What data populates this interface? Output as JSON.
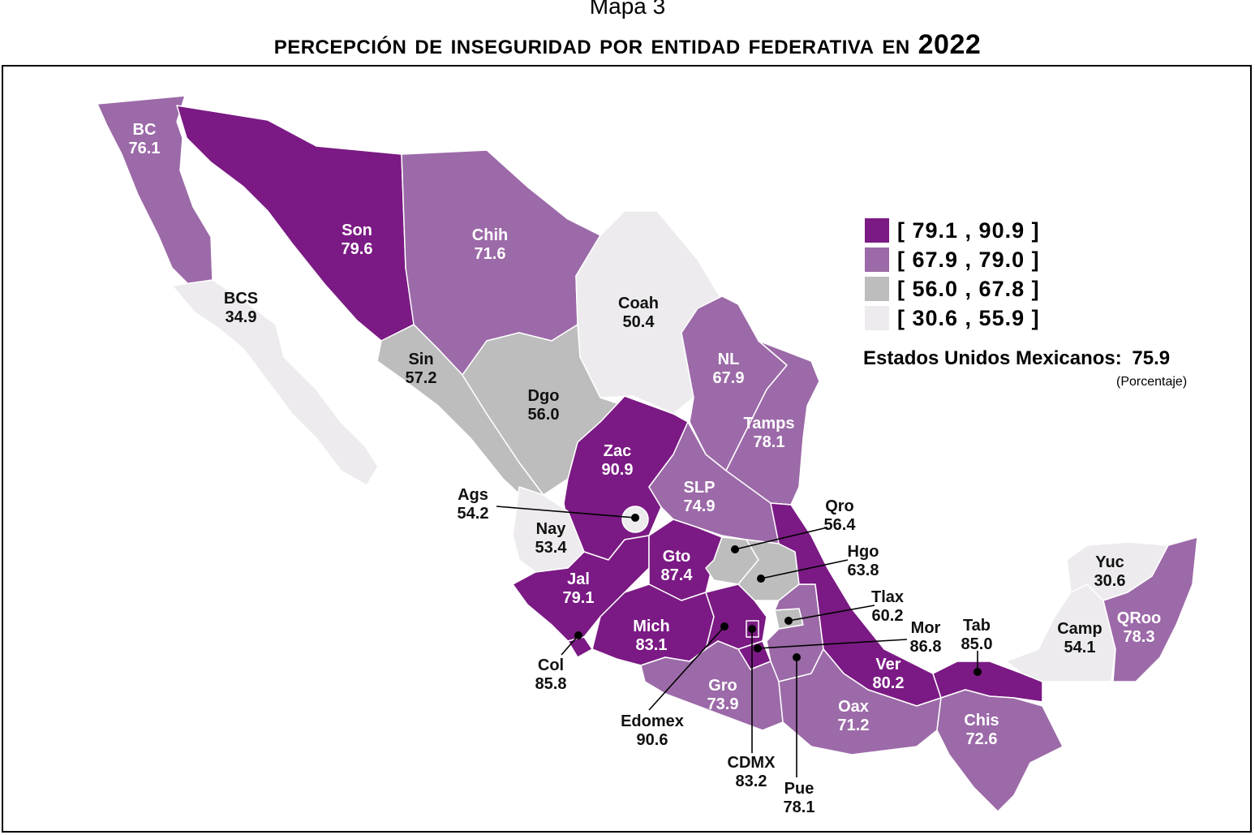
{
  "header": {
    "map_number": "Mapa 3",
    "title": "Percepción de inseguridad por entidad federativa en 2022"
  },
  "legend": {
    "classes": [
      {
        "label": "[ 79.1 , 90.9 ]",
        "color": "#7b1a84"
      },
      {
        "label": "[ 67.9 , 79.0 ]",
        "color": "#9c6aa8"
      },
      {
        "label": "[ 56.0 , 67.8 ]",
        "color": "#bdbdbd"
      },
      {
        "label": "[ 30.6 , 55.9 ]",
        "color": "#edebee"
      }
    ],
    "national_label": "Estados Unidos Mexicanos:",
    "national_value": "75.9",
    "unit": "(Porcentaje)"
  },
  "states": [
    {
      "abbr": "BC",
      "value": "76.1"
    },
    {
      "abbr": "BCS",
      "value": "34.9"
    },
    {
      "abbr": "Son",
      "value": "79.6"
    },
    {
      "abbr": "Chih",
      "value": "71.6"
    },
    {
      "abbr": "Coah",
      "value": "50.4"
    },
    {
      "abbr": "NL",
      "value": "67.9"
    },
    {
      "abbr": "Tamps",
      "value": "78.1"
    },
    {
      "abbr": "Sin",
      "value": "57.2"
    },
    {
      "abbr": "Dgo",
      "value": "56.0"
    },
    {
      "abbr": "Zac",
      "value": "90.9"
    },
    {
      "abbr": "SLP",
      "value": "74.9"
    },
    {
      "abbr": "Ags",
      "value": "54.2"
    },
    {
      "abbr": "Nay",
      "value": "53.4"
    },
    {
      "abbr": "Jal",
      "value": "79.1"
    },
    {
      "abbr": "Gto",
      "value": "87.4"
    },
    {
      "abbr": "Qro",
      "value": "56.4"
    },
    {
      "abbr": "Hgo",
      "value": "63.8"
    },
    {
      "abbr": "Tlax",
      "value": "60.2"
    },
    {
      "abbr": "Mor",
      "value": "86.8"
    },
    {
      "abbr": "Mich",
      "value": "83.1"
    },
    {
      "abbr": "Col",
      "value": "85.8"
    },
    {
      "abbr": "Edomex",
      "value": "90.6"
    },
    {
      "abbr": "CDMX",
      "value": "83.2"
    },
    {
      "abbr": "Pue",
      "value": "78.1"
    },
    {
      "abbr": "Gro",
      "value": "73.9"
    },
    {
      "abbr": "Oax",
      "value": "71.2"
    },
    {
      "abbr": "Ver",
      "value": "80.2"
    },
    {
      "abbr": "Tab",
      "value": "85.0"
    },
    {
      "abbr": "Chis",
      "value": "72.6"
    },
    {
      "abbr": "Camp",
      "value": "54.1"
    },
    {
      "abbr": "Yuc",
      "value": "30.6"
    },
    {
      "abbr": "QRoo",
      "value": "78.3"
    }
  ]
}
